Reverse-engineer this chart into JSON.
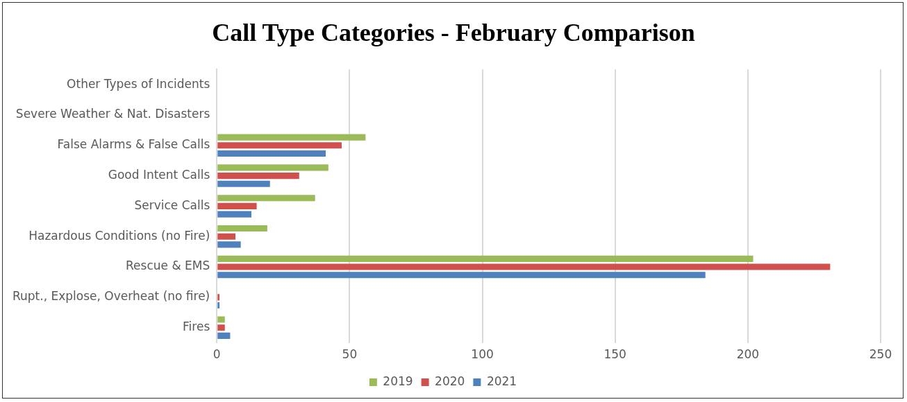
{
  "chart_data": {
    "type": "bar",
    "orientation": "horizontal",
    "title": "Call Type Categories - February Comparison",
    "categories": [
      "Other Types of Incidents",
      "Severe Weather & Nat. Disasters",
      "False Alarms & False Calls",
      "Good Intent Calls",
      "Service Calls",
      "Hazardous Conditions (no Fire)",
      "Rescue & EMS",
      "Rupt., Explose, Overheat (no fire)",
      "Fires"
    ],
    "series": [
      {
        "name": "2019",
        "color": "#9bbb59",
        "values": [
          0,
          0,
          56,
          42,
          37,
          19,
          202,
          0,
          3
        ]
      },
      {
        "name": "2020",
        "color": "#d0504d",
        "values": [
          0,
          0,
          47,
          31,
          15,
          7,
          231,
          1,
          3
        ]
      },
      {
        "name": "2021",
        "color": "#4f81bd",
        "values": [
          0,
          0,
          41,
          20,
          13,
          9,
          184,
          1,
          5
        ]
      }
    ],
    "xlim": [
      0,
      250
    ],
    "xticks": [
      0,
      50,
      100,
      150,
      200,
      250
    ],
    "grid": "x",
    "legend": "bottom"
  }
}
